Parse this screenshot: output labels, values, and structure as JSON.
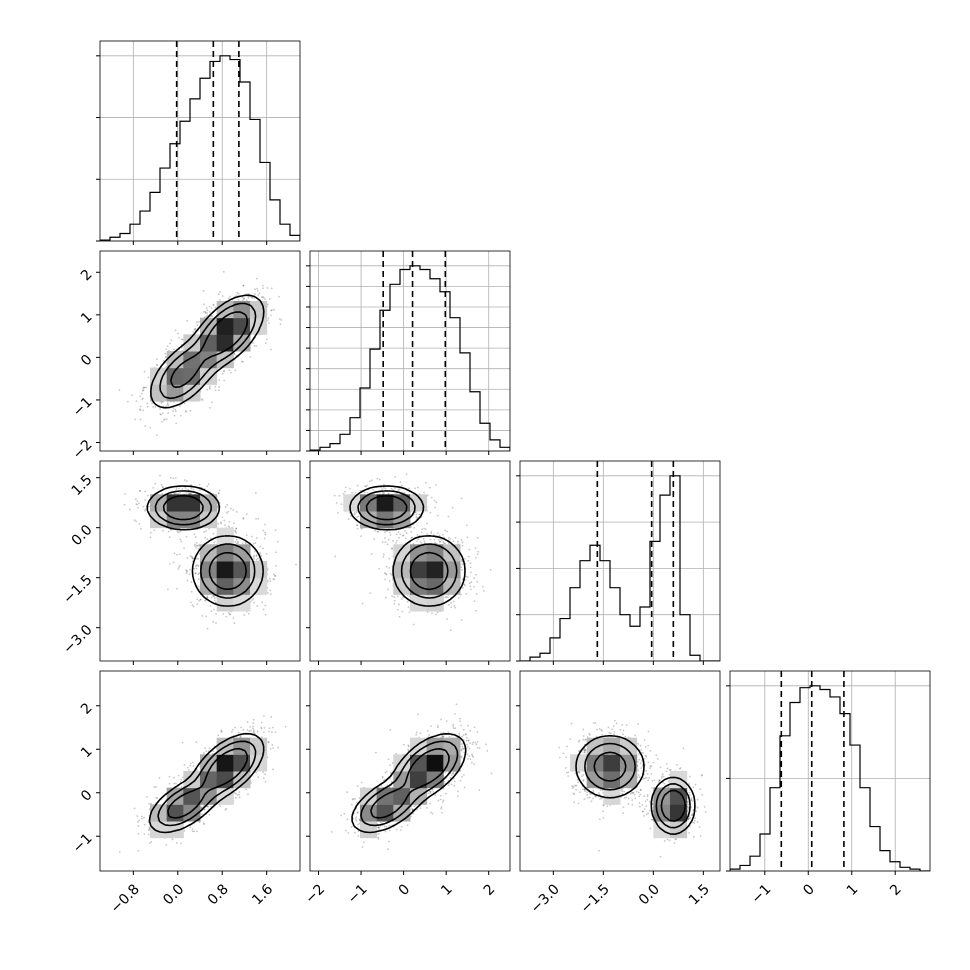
{
  "chart_data": {
    "type": "corner",
    "n_params": 4,
    "grid": true,
    "colors": {
      "line": "#000000",
      "grid": "#b0b0b0",
      "points": "#000000",
      "density_max": "#000000"
    },
    "ranges": [
      [
        -1.4,
        2.2
      ],
      [
        -2.2,
        2.5
      ],
      [
        -4.0,
        2.0
      ],
      [
        -1.8,
        2.8
      ]
    ],
    "ticks": [
      {
        "values": [
          -0.8,
          0.0,
          0.8,
          1.6
        ],
        "labels": [
          "−0.8",
          "0.0",
          "0.8",
          "1.6"
        ]
      },
      {
        "values": [
          -2,
          -1,
          0,
          1,
          2
        ],
        "labels": [
          "−2",
          "−1",
          "0",
          "1",
          "2"
        ]
      },
      {
        "values": [
          -3.0,
          -1.5,
          0.0,
          1.5
        ],
        "labels": [
          "−3.0",
          "−1.5",
          "0.0",
          "1.5"
        ]
      },
      {
        "values": [
          -1,
          0,
          1,
          2
        ],
        "labels": [
          "−1",
          "0",
          "1",
          "2"
        ]
      }
    ],
    "diag_ticks": [
      3,
      9,
      4,
      2
    ],
    "histograms": [
      {
        "bin_start": -1.4,
        "bin_width": 0.18,
        "counts": [
          0.005,
          0.02,
          0.04,
          0.09,
          0.16,
          0.26,
          0.39,
          0.52,
          0.64,
          0.76,
          0.87,
          0.96,
          0.99,
          0.97,
          0.85,
          0.65,
          0.42,
          0.22,
          0.09,
          0.03
        ]
      },
      {
        "bin_start": -2.2,
        "bin_width": 0.235,
        "counts": [
          0.005,
          0.02,
          0.04,
          0.09,
          0.18,
          0.34,
          0.55,
          0.76,
          0.9,
          0.98,
          1.0,
          0.98,
          0.93,
          0.86,
          0.72,
          0.53,
          0.32,
          0.15,
          0.06,
          0.02
        ]
      },
      {
        "bin_start": -4.0,
        "bin_width": 0.3,
        "counts": [
          0.0,
          0.02,
          0.04,
          0.12,
          0.22,
          0.38,
          0.52,
          0.6,
          0.52,
          0.38,
          0.24,
          0.18,
          0.28,
          0.62,
          0.86,
          0.96,
          0.24,
          0.03,
          0.0,
          0.0
        ]
      },
      {
        "bin_start": -1.8,
        "bin_width": 0.23,
        "counts": [
          0.01,
          0.03,
          0.08,
          0.2,
          0.45,
          0.73,
          0.91,
          0.99,
          1.0,
          0.98,
          0.94,
          0.85,
          0.68,
          0.45,
          0.24,
          0.11,
          0.05,
          0.02,
          0.01,
          0.0
        ]
      }
    ],
    "quantiles": [
      [
        -0.02,
        0.64,
        1.1
      ],
      [
        -0.48,
        0.21,
        0.98
      ],
      [
        -1.68,
        -0.05,
        0.6
      ],
      [
        -0.62,
        0.08,
        0.82
      ]
    ],
    "components": [
      {
        "weight": 0.6,
        "mean": [
          0.9,
          0.6,
          -1.3,
          0.6
        ],
        "sd": [
          0.3,
          0.4,
          0.5,
          0.35
        ]
      },
      {
        "weight": 0.4,
        "mean": [
          0.1,
          -0.4,
          0.6,
          -0.3
        ],
        "sd": [
          0.3,
          0.4,
          0.3,
          0.3
        ]
      }
    ],
    "correlations": [
      [
        1.0,
        0.55,
        0.0,
        0.55
      ],
      [
        0.55,
        1.0,
        0.0,
        0.5
      ],
      [
        0.0,
        0.0,
        1.0,
        0.0
      ],
      [
        0.55,
        0.5,
        0.0,
        1.0
      ]
    ],
    "contour_levels": [
      0.5,
      0.25,
      0.1
    ]
  }
}
